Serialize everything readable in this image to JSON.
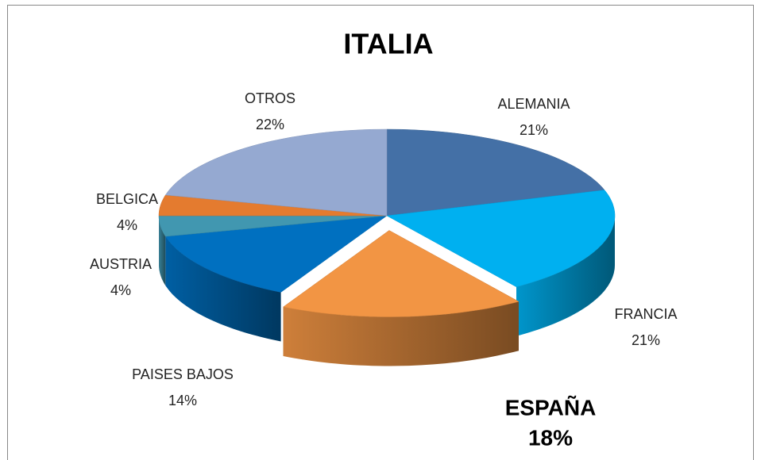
{
  "chart_data": {
    "type": "pie3d",
    "title": "ITALIA",
    "categories": [
      "ALEMANIA",
      "FRANCIA",
      "ESPAÑA",
      "PAISES BAJOS",
      "AUSTRIA",
      "BELGICA",
      "OTROS"
    ],
    "values": [
      21,
      21,
      18,
      14,
      4,
      4,
      22
    ],
    "value_labels": [
      "21%",
      "21%",
      "18%",
      "14%",
      "4%",
      "4%",
      "22%"
    ],
    "colors": [
      "#4470a6",
      "#00b0f0",
      "#f29544",
      "#0070c0",
      "#4197b0",
      "#e47b2f",
      "#95a9d1"
    ],
    "explode": [
      false,
      false,
      true,
      false,
      false,
      false,
      false
    ]
  }
}
